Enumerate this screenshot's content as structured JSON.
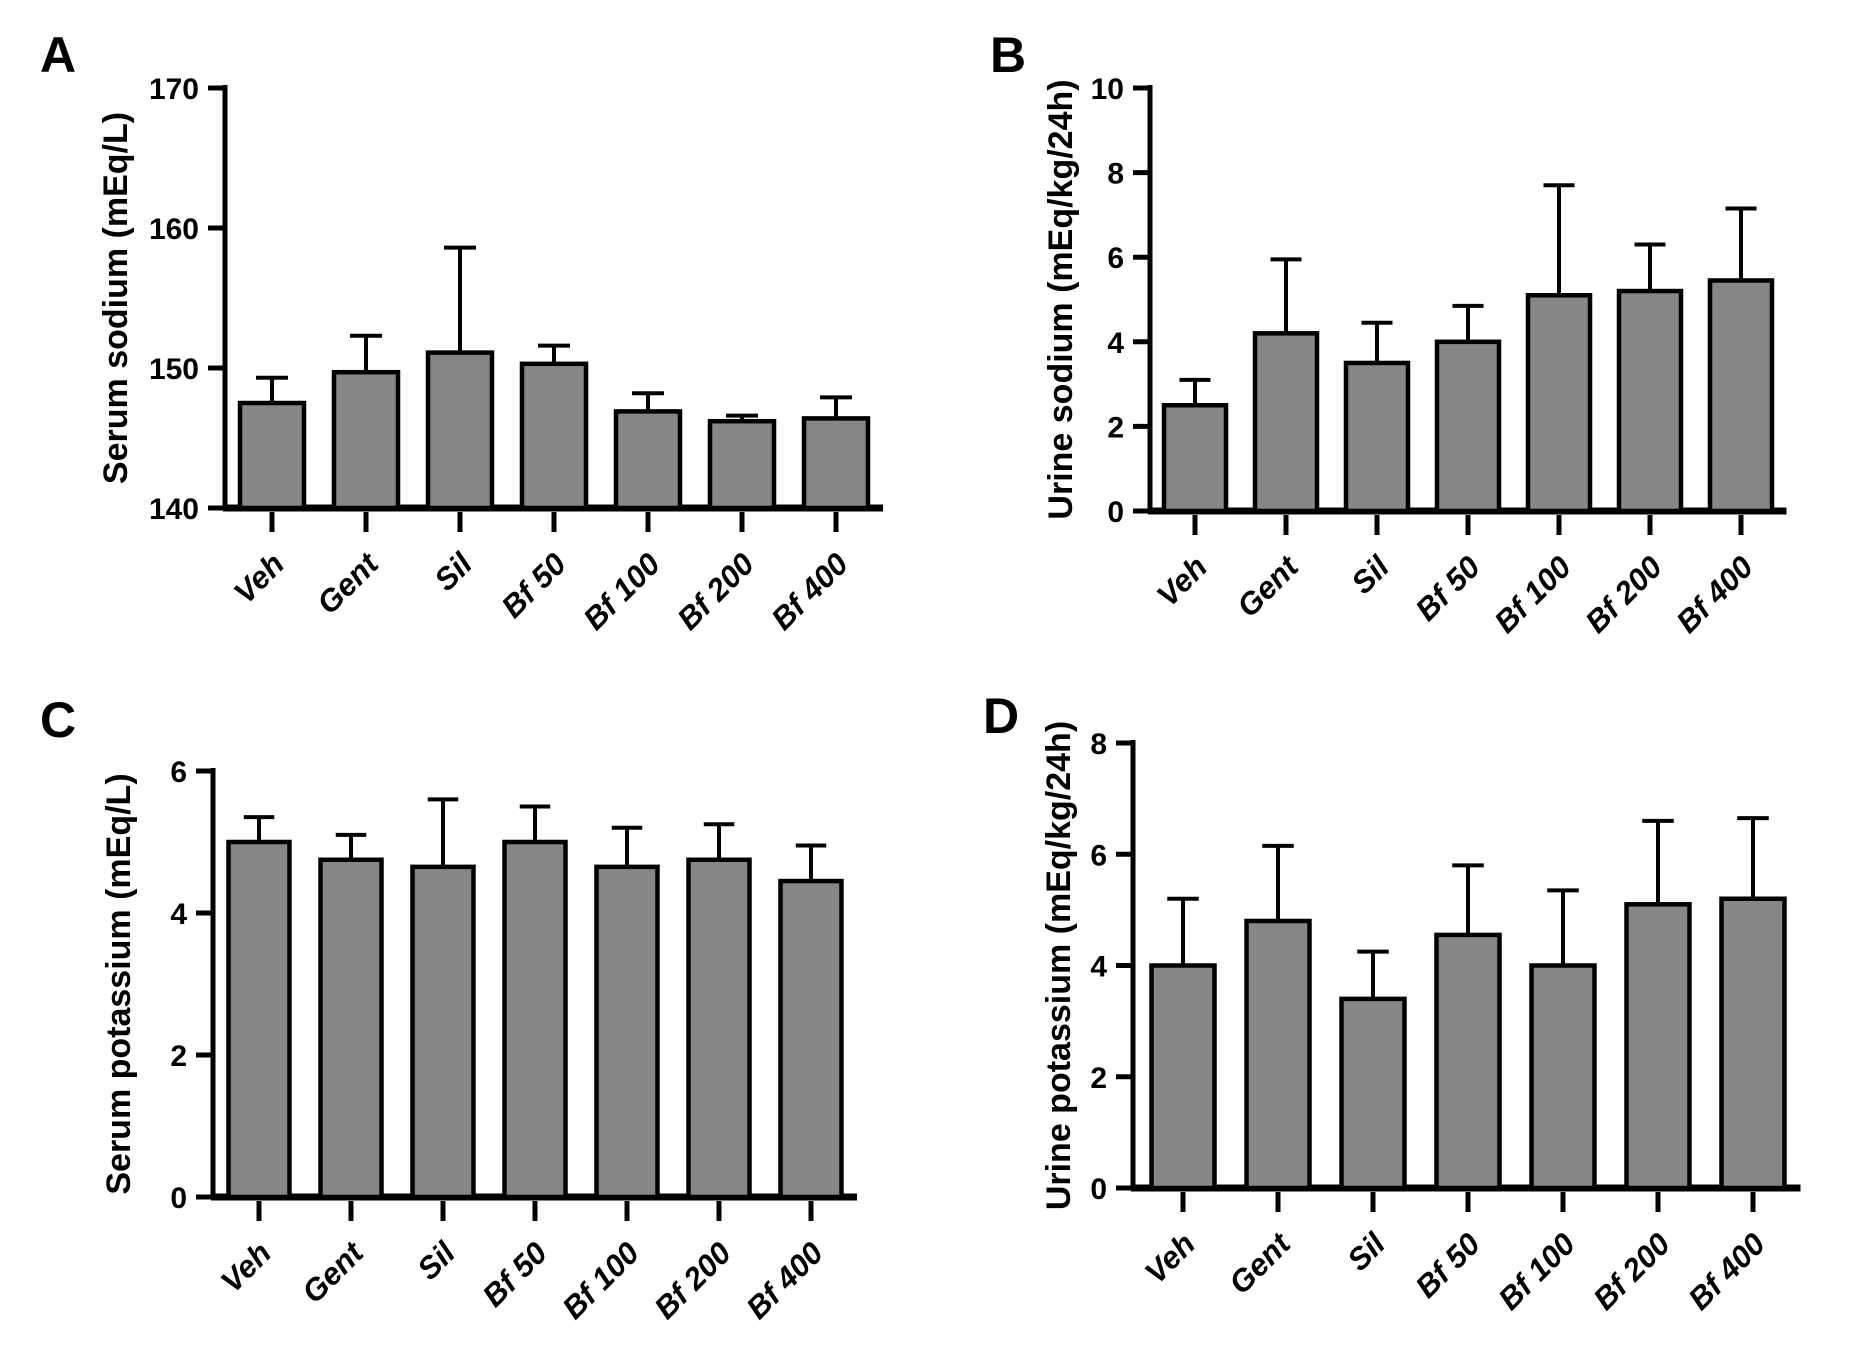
{
  "figure": {
    "background": "#ffffff",
    "style": {
      "bar_fill": "#868686",
      "bar_edge": "#000000",
      "axis_color": "#000000",
      "text_color": "#000000"
    }
  },
  "chart_data": [
    {
      "panel": "A",
      "type": "bar",
      "title": "",
      "xlabel": "",
      "ylabel": "Serum sodium (mEq/L)",
      "categories": [
        "Veh",
        "Gent",
        "Sil",
        "Bf 50",
        "Bf 100",
        "Bf 200",
        "Bf 400"
      ],
      "values": [
        147.5,
        149.7,
        151.1,
        150.3,
        146.9,
        146.2,
        146.4
      ],
      "errors_sd_upper": [
        1.8,
        2.6,
        7.5,
        1.3,
        1.3,
        0.4,
        1.5
      ],
      "ylim": [
        140,
        170
      ],
      "yticks": [
        140,
        150,
        160,
        170
      ],
      "grid": false,
      "legend": null,
      "error_bar_style": "upper-only-with-cap"
    },
    {
      "panel": "B",
      "type": "bar",
      "title": "",
      "xlabel": "",
      "ylabel": "Urine sodium (mEq/kg/24h)",
      "categories": [
        "Veh",
        "Gent",
        "Sil",
        "Bf 50",
        "Bf 100",
        "Bf 200",
        "Bf 400"
      ],
      "values": [
        2.5,
        4.2,
        3.5,
        4.0,
        5.1,
        5.2,
        5.45
      ],
      "errors_sd_upper": [
        0.6,
        1.75,
        0.95,
        0.85,
        2.6,
        1.1,
        1.7
      ],
      "ylim": [
        0,
        10
      ],
      "yticks": [
        0,
        2,
        4,
        6,
        8,
        10
      ],
      "grid": false,
      "legend": null,
      "error_bar_style": "upper-only-with-cap"
    },
    {
      "panel": "C",
      "type": "bar",
      "title": "",
      "xlabel": "",
      "ylabel": "Serum potassium (mEq/L)",
      "categories": [
        "Veh",
        "Gent",
        "Sil",
        "Bf 50",
        "Bf 100",
        "Bf 200",
        "Bf 400"
      ],
      "values": [
        5.0,
        4.75,
        4.65,
        5.0,
        4.65,
        4.75,
        4.45
      ],
      "errors_sd_upper": [
        0.35,
        0.35,
        0.95,
        0.5,
        0.55,
        0.5,
        0.5
      ],
      "ylim": [
        0,
        6
      ],
      "yticks": [
        0,
        2,
        4,
        6
      ],
      "grid": false,
      "legend": null,
      "error_bar_style": "upper-only-with-cap"
    },
    {
      "panel": "D",
      "type": "bar",
      "title": "",
      "xlabel": "",
      "ylabel": "Urine potassium (mEq/kg/24h)",
      "categories": [
        "Veh",
        "Gent",
        "Sil",
        "Bf 50",
        "Bf 100",
        "Bf 200",
        "Bf 400"
      ],
      "values": [
        4.0,
        4.8,
        3.4,
        4.55,
        4.0,
        5.1,
        5.2
      ],
      "errors_sd_upper": [
        1.2,
        1.35,
        0.85,
        1.25,
        1.35,
        1.5,
        1.45
      ],
      "ylim": [
        0,
        8
      ],
      "yticks": [
        0,
        2,
        4,
        6,
        8
      ],
      "grid": false,
      "legend": null,
      "error_bar_style": "upper-only-with-cap"
    }
  ]
}
